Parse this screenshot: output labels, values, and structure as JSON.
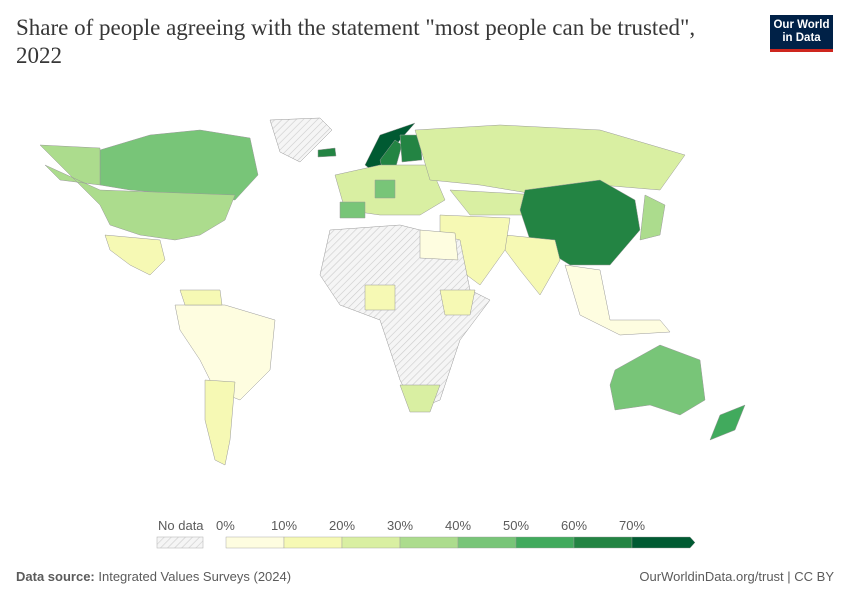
{
  "title": "Share of people agreeing with the statement \"most people can be trusted\", 2022",
  "logo": {
    "line1": "Our World",
    "line2": "in Data",
    "bg": "#002147",
    "accent": "#ce261e"
  },
  "chart_data": {
    "type": "choropleth-map",
    "title": "Share of people agreeing with the statement \"most people can be trusted\", 2022",
    "legend": {
      "no_data_label": "No data",
      "tick_labels": [
        "0%",
        "10%",
        "20%",
        "30%",
        "40%",
        "50%",
        "60%",
        "70%"
      ],
      "bins": [
        {
          "range": [
            0,
            10
          ],
          "color": "#fefde0"
        },
        {
          "range": [
            10,
            20
          ],
          "color": "#f6f9b4"
        },
        {
          "range": [
            20,
            30
          ],
          "color": "#d9efa2"
        },
        {
          "range": [
            30,
            40
          ],
          "color": "#acdc8d"
        },
        {
          "range": [
            40,
            50
          ],
          "color": "#78c578"
        },
        {
          "range": [
            50,
            60
          ],
          "color": "#41aa5d"
        },
        {
          "range": [
            60,
            70
          ],
          "color": "#238443"
        },
        {
          "range": [
            70,
            null
          ],
          "color": "#005a32"
        }
      ],
      "placement": "bottom"
    },
    "regions": [
      {
        "name": "Canada",
        "value": 45
      },
      {
        "name": "United States",
        "value": 37
      },
      {
        "name": "Greenland",
        "value": null
      },
      {
        "name": "Mexico",
        "value": 13
      },
      {
        "name": "Brazil",
        "value": 5
      },
      {
        "name": "Argentina",
        "value": 15
      },
      {
        "name": "Venezuela",
        "value": 12
      },
      {
        "name": "Norway",
        "value": 72
      },
      {
        "name": "Sweden",
        "value": 63
      },
      {
        "name": "Finland",
        "value": 65
      },
      {
        "name": "Iceland",
        "value": 64
      },
      {
        "name": "Europe (other)",
        "value": 25
      },
      {
        "name": "Germany",
        "value": 45
      },
      {
        "name": "Spain",
        "value": 45
      },
      {
        "name": "Russia",
        "value": 24
      },
      {
        "name": "Kazakhstan",
        "value": 22
      },
      {
        "name": "China",
        "value": 64
      },
      {
        "name": "India",
        "value": 15
      },
      {
        "name": "Middle East",
        "value": 14
      },
      {
        "name": "Japan",
        "value": 35
      },
      {
        "name": "Southeast Asia",
        "value": 8
      },
      {
        "name": "Africa (mostly)",
        "value": null
      },
      {
        "name": "Egypt",
        "value": 7
      },
      {
        "name": "Nigeria",
        "value": 12
      },
      {
        "name": "Ethiopia",
        "value": 15
      },
      {
        "name": "South Africa",
        "value": 23
      },
      {
        "name": "Australia",
        "value": 48
      },
      {
        "name": "New Zealand",
        "value": 57
      }
    ]
  },
  "footer": {
    "source_label": "Data source:",
    "source": "Integrated Values Surveys (2024)",
    "link": "OurWorldinData.org/trust | CC BY"
  }
}
